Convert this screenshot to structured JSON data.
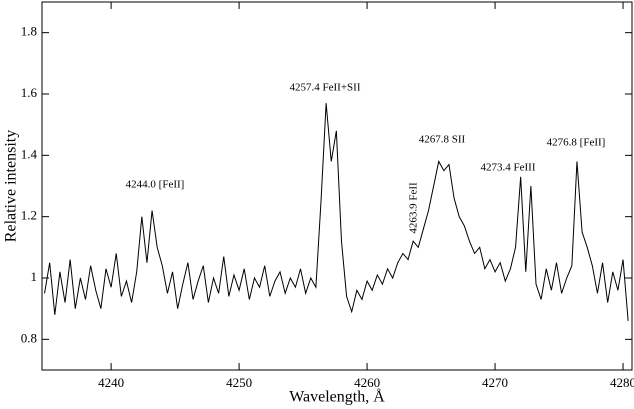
{
  "chart_data": {
    "type": "line",
    "xlabel": "Wavelength, Å",
    "ylabel": "Relative intensity",
    "annotations": [
      "4244.0 [FeII]",
      "4257.4 FeII+SII",
      "4263.9 FeII",
      "4267.8 SII",
      "4273.4 FeIII",
      "4276.8 [FeII]"
    ],
    "xlim": [
      4234.6,
      4280.7
    ],
    "ylim": [
      0.7,
      1.9
    ],
    "xticks": [
      4240,
      4250,
      4260,
      4270,
      4280
    ],
    "yticks": [
      0.8,
      1,
      1.2,
      1.4,
      1.6,
      1.8
    ],
    "x": [
      4234.8,
      4235.2,
      4235.6,
      4236.0,
      4236.4,
      4236.8,
      4237.2,
      4237.6,
      4238.0,
      4238.4,
      4238.8,
      4239.2,
      4239.6,
      4240.0,
      4240.4,
      4240.8,
      4241.2,
      4241.6,
      4242.0,
      4242.4,
      4242.8,
      4243.2,
      4243.6,
      4244.0,
      4244.4,
      4244.8,
      4245.2,
      4245.6,
      4246.0,
      4246.4,
      4246.8,
      4247.2,
      4247.6,
      4248.0,
      4248.4,
      4248.8,
      4249.2,
      4249.6,
      4250.0,
      4250.4,
      4250.8,
      4251.2,
      4251.6,
      4252.0,
      4252.4,
      4252.8,
      4253.2,
      4253.6,
      4254.0,
      4254.4,
      4254.8,
      4255.2,
      4255.6,
      4256.0,
      4256.4,
      4256.8,
      4257.2,
      4257.6,
      4258.0,
      4258.4,
      4258.8,
      4259.2,
      4259.6,
      4260.0,
      4260.4,
      4260.8,
      4261.2,
      4261.6,
      4262.0,
      4262.4,
      4262.8,
      4263.2,
      4263.6,
      4264.0,
      4264.4,
      4264.8,
      4265.2,
      4265.6,
      4266.0,
      4266.4,
      4266.8,
      4267.2,
      4267.6,
      4268.0,
      4268.4,
      4268.8,
      4269.2,
      4269.6,
      4270.0,
      4270.4,
      4270.8,
      4271.2,
      4271.6,
      4272.0,
      4272.4,
      4272.8,
      4273.2,
      4273.6,
      4274.0,
      4274.4,
      4274.8,
      4275.2,
      4275.6,
      4276.0,
      4276.4,
      4276.8,
      4277.2,
      4277.6,
      4278.0,
      4278.4,
      4278.8,
      4279.2,
      4279.6,
      4280.0,
      4280.4
    ],
    "series": [
      {
        "color": "#000000",
        "values": [
          0.95,
          1.05,
          0.88,
          1.02,
          0.92,
          1.06,
          0.9,
          1.0,
          0.93,
          1.04,
          0.96,
          0.9,
          1.03,
          0.97,
          1.08,
          0.94,
          0.99,
          0.92,
          1.02,
          1.2,
          1.05,
          1.22,
          1.1,
          1.04,
          0.95,
          1.02,
          0.9,
          0.98,
          1.05,
          0.93,
          0.99,
          1.04,
          0.92,
          1.0,
          0.95,
          1.07,
          0.94,
          1.01,
          0.96,
          1.03,
          0.93,
          1.0,
          0.97,
          1.04,
          0.94,
          0.99,
          1.02,
          0.95,
          1.0,
          0.97,
          1.03,
          0.95,
          1.0,
          0.97,
          1.25,
          1.57,
          1.38,
          1.48,
          1.12,
          0.94,
          0.89,
          0.96,
          0.93,
          0.99,
          0.96,
          1.01,
          0.98,
          1.03,
          1.0,
          1.05,
          1.08,
          1.06,
          1.12,
          1.1,
          1.16,
          1.22,
          1.3,
          1.38,
          1.35,
          1.37,
          1.26,
          1.2,
          1.17,
          1.12,
          1.08,
          1.1,
          1.03,
          1.06,
          1.02,
          1.05,
          0.99,
          1.03,
          1.1,
          1.33,
          1.02,
          1.3,
          0.98,
          0.93,
          1.03,
          0.96,
          1.05,
          0.95,
          1.0,
          1.04,
          1.38,
          1.15,
          1.1,
          1.04,
          0.95,
          1.05,
          0.92,
          1.02,
          0.96,
          1.06,
          0.86
        ]
      }
    ]
  }
}
